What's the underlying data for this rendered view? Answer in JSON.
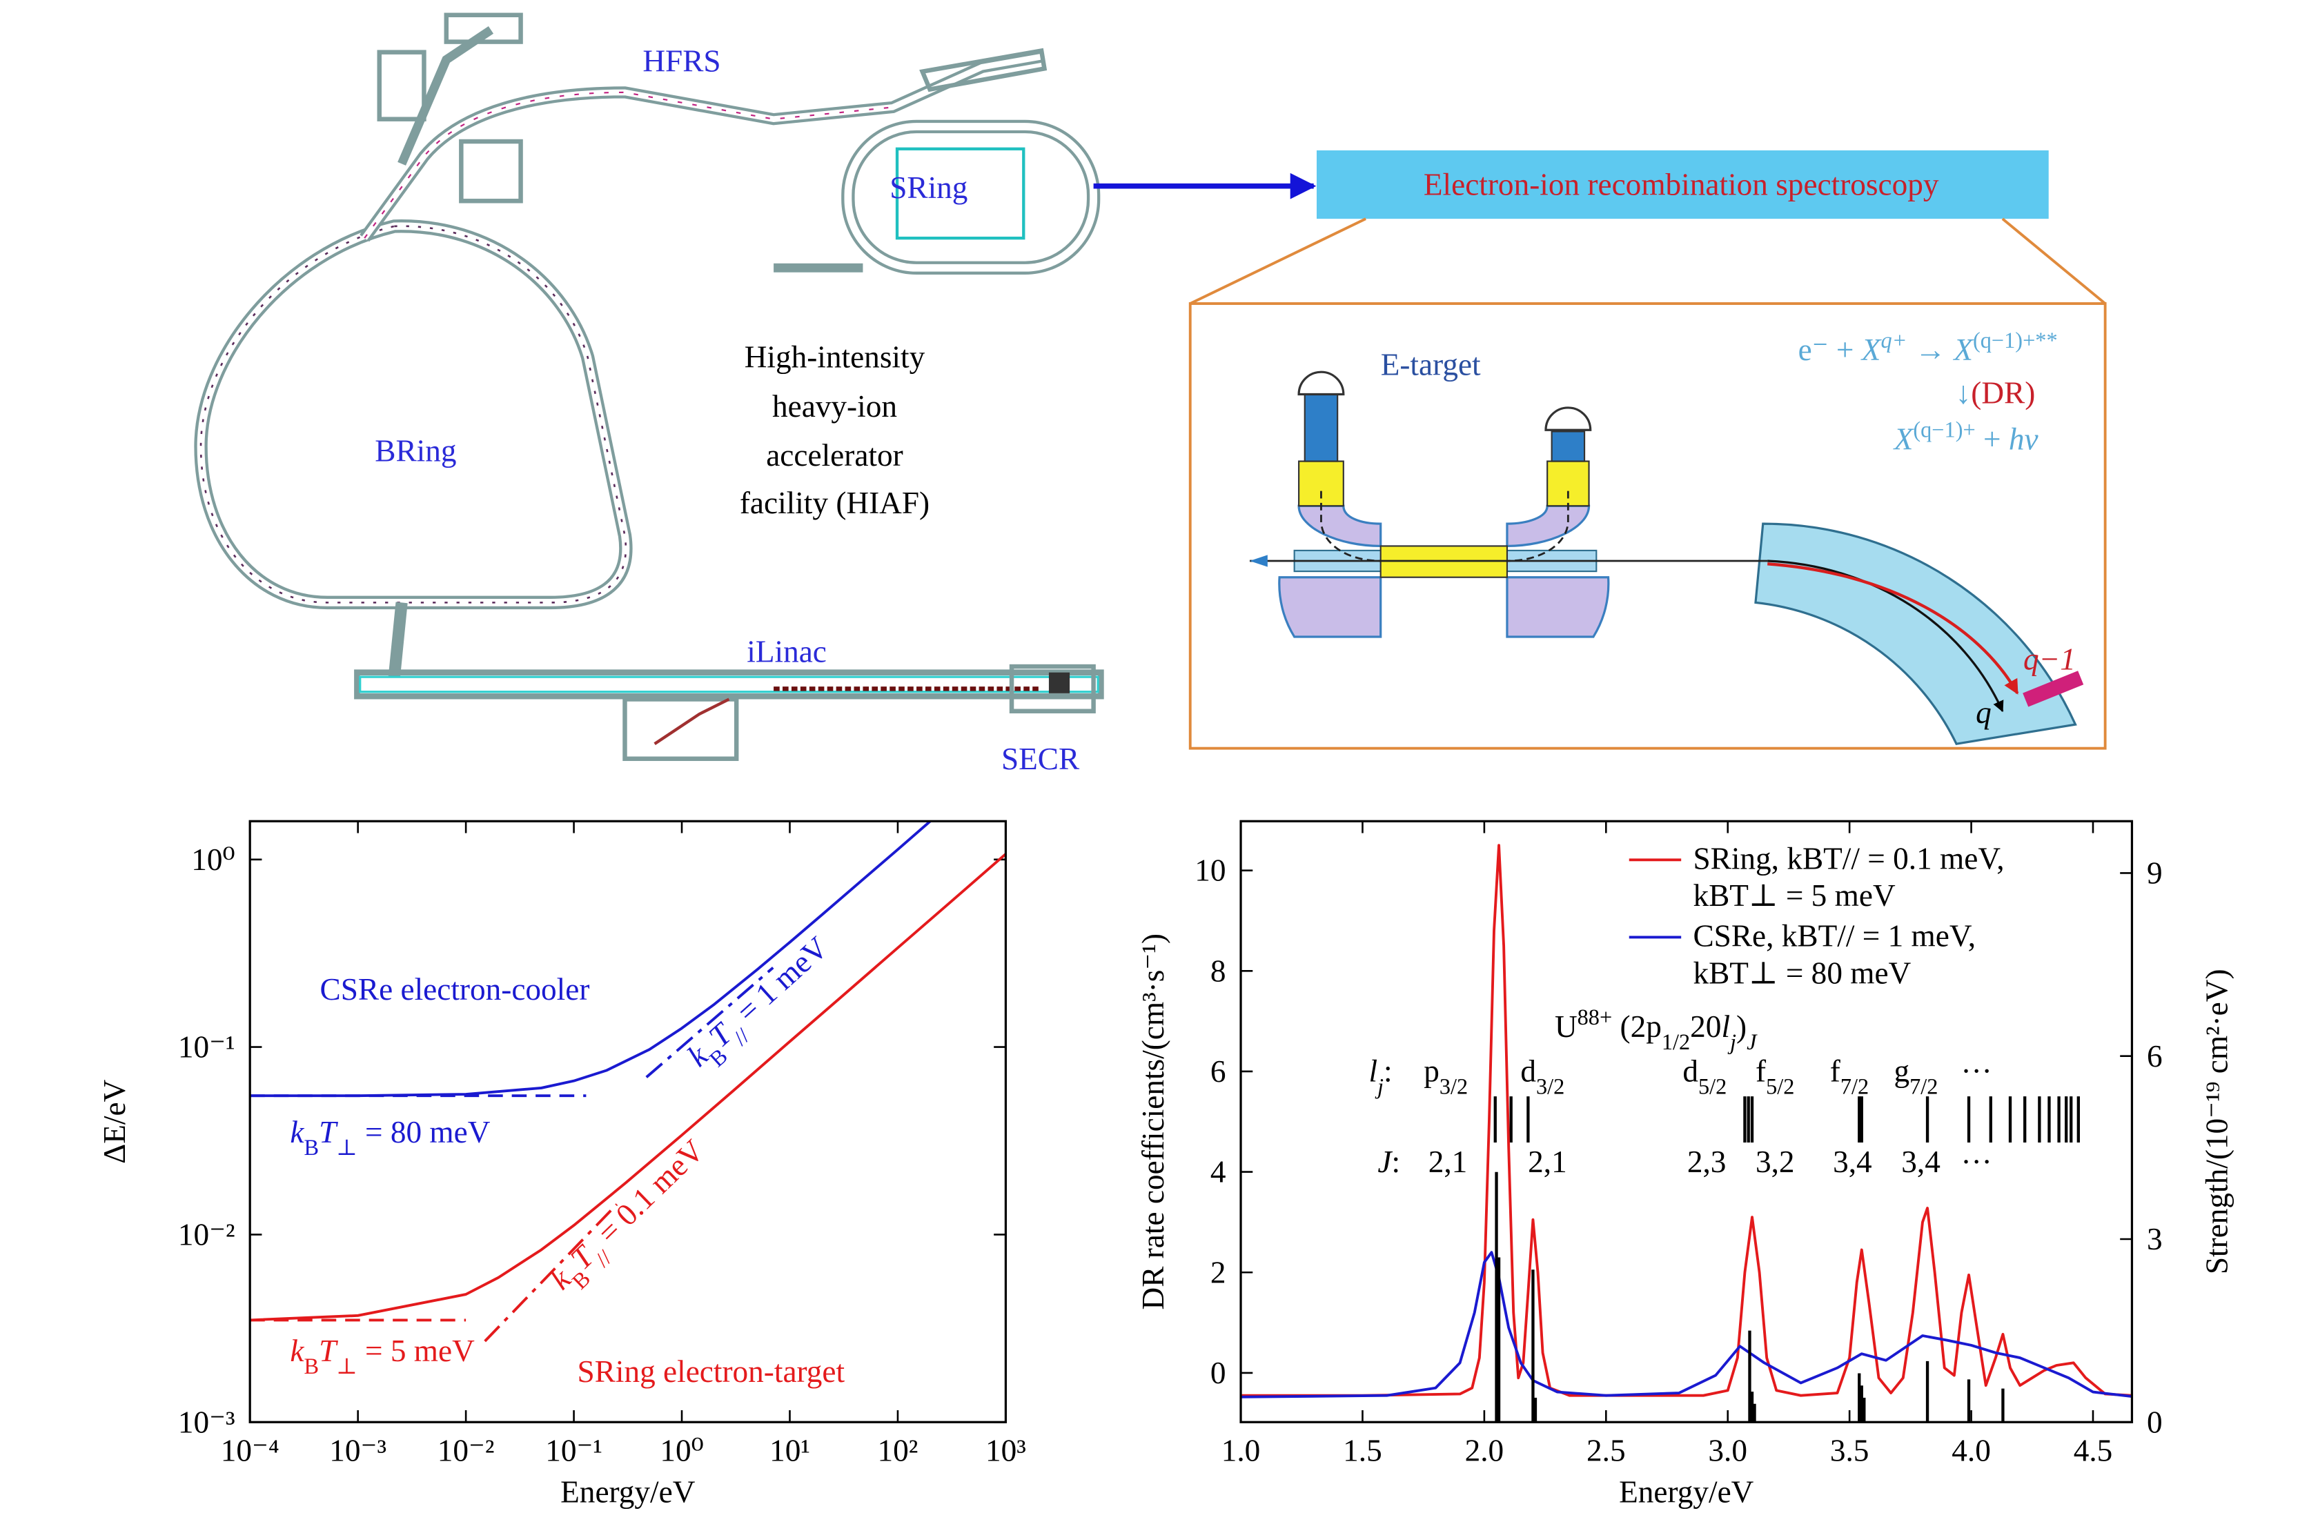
{
  "diagram": {
    "facility_labels": [
      "HFRS",
      "SRing",
      "BRing",
      "iLinac",
      "SECR"
    ],
    "facility_title": [
      "High-intensity",
      "heavy-ion",
      "accelerator",
      "facility (HIAF)"
    ],
    "box_title": "Electron-ion recombination spectroscopy",
    "etarget": "E-target",
    "process": [
      {
        "parts": [
          {
            "text": "e⁻ + "
          },
          {
            "text": "X",
            "i": true
          },
          {
            "text": "q+",
            "sup": true,
            "i": true
          },
          {
            "text": " → "
          },
          {
            "text": "X",
            "i": true
          },
          {
            "text": "(q−1)+**",
            "sup": true
          }
        ],
        "color": "#5aa9d6"
      },
      {
        "parts": [
          {
            "text": "↓"
          },
          {
            "text": "(DR)",
            "color": "#c8202a"
          }
        ],
        "color": "#5aa9d6"
      },
      {
        "parts": [
          {
            "text": "X",
            "i": true
          },
          {
            "text": "(q−1)+",
            "sup": true
          },
          {
            "text": " + "
          },
          {
            "text": "hν",
            "i": true
          }
        ],
        "color": "#5aa9d6"
      }
    ],
    "dipole_labels": [
      "q−1",
      "q"
    ]
  },
  "chart_data": [
    {
      "type": "line",
      "xscale": "log",
      "yscale": "log",
      "xlabel": "Energy/eV",
      "ylabel": "ΔE/eV",
      "xlim": [
        0.0001,
        1000
      ],
      "ylim": [
        0.001,
        1.6
      ],
      "xticks": [
        {
          "value": 0.0001,
          "label": "10⁻⁴"
        },
        {
          "value": 0.001,
          "label": "10⁻³"
        },
        {
          "value": 0.01,
          "label": "10⁻²"
        },
        {
          "value": 0.1,
          "label": "10⁻¹"
        },
        {
          "value": 1,
          "label": "10⁰"
        },
        {
          "value": 10,
          "label": "10¹"
        },
        {
          "value": 100,
          "label": "10²"
        },
        {
          "value": 1000,
          "label": "10³"
        }
      ],
      "yticks": [
        {
          "value": 0.001,
          "label": "10⁻³"
        },
        {
          "value": 0.01,
          "label": "10⁻²"
        },
        {
          "value": 0.1,
          "label": "10⁻¹"
        },
        {
          "value": 1,
          "label": "10⁰"
        }
      ],
      "series": [
        {
          "color": "#1a1ad0",
          "style": "solid",
          "x": [
            0.0001,
            0.001,
            0.01,
            0.05,
            0.1,
            0.2,
            0.5,
            1,
            2,
            5,
            10,
            20,
            50,
            100,
            200
          ],
          "values": [
            0.055,
            0.055,
            0.056,
            0.0605,
            0.066,
            0.075,
            0.097,
            0.126,
            0.169,
            0.259,
            0.362,
            0.509,
            0.802,
            1.13,
            1.6
          ]
        },
        {
          "color": "#1a1ad0",
          "style": "dashed",
          "x": [
            0.0001,
            0.13
          ],
          "values": [
            0.055,
            0.055
          ]
        },
        {
          "color": "#1a1ad0",
          "style": "dashdot",
          "x": [
            0.47,
            7
          ],
          "values": [
            0.069,
            0.265
          ]
        },
        {
          "color": "#e41a1c",
          "style": "solid",
          "x": [
            0.0001,
            0.001,
            0.01,
            0.02,
            0.05,
            0.1,
            0.3,
            1,
            3,
            10,
            30,
            100,
            300,
            1000
          ],
          "values": [
            0.0035,
            0.0037,
            0.0048,
            0.0059,
            0.0083,
            0.0112,
            0.0188,
            0.0339,
            0.0585,
            0.107,
            0.185,
            0.338,
            0.585,
            1.07
          ]
        },
        {
          "color": "#e41a1c",
          "style": "dashed",
          "x": [
            0.0001,
            0.01
          ],
          "values": [
            0.0035,
            0.0035
          ]
        },
        {
          "color": "#e41a1c",
          "style": "dashdot",
          "x": [
            0.015,
            0.25
          ],
          "values": [
            0.0027,
            0.0145
          ]
        }
      ],
      "annotations": [
        {
          "parts": [
            {
              "text": "CSRe electron-cooler"
            }
          ],
          "color": "#1a1ad0"
        },
        {
          "parts": [
            {
              "text": "k",
              "i": true
            },
            {
              "text": "B",
              "sub": true
            },
            {
              "text": "T",
              "i": true
            },
            {
              "text": "⊥",
              "sub": true
            },
            {
              "text": " = 80 meV"
            }
          ],
          "color": "#1a1ad0"
        },
        {
          "parts": [
            {
              "text": "k",
              "i": true
            },
            {
              "text": "B",
              "sub": true
            },
            {
              "text": "T",
              "i": true
            },
            {
              "text": "//",
              "sub": true
            },
            {
              "text": " = 1 meV"
            }
          ],
          "color": "#1a1ad0"
        },
        {
          "parts": [
            {
              "text": "k",
              "i": true
            },
            {
              "text": "B",
              "sub": true
            },
            {
              "text": "T",
              "i": true
            },
            {
              "text": "//",
              "sub": true
            },
            {
              "text": " = 0.1 meV"
            }
          ],
          "color": "#e41a1c"
        },
        {
          "parts": [
            {
              "text": "k",
              "i": true
            },
            {
              "text": "B",
              "sub": true
            },
            {
              "text": "T",
              "i": true
            },
            {
              "text": "⊥",
              "sub": true
            },
            {
              "text": " = 5 meV"
            }
          ],
          "color": "#e41a1c"
        },
        {
          "parts": [
            {
              "text": "SRing electron-target"
            }
          ],
          "color": "#e41a1c"
        }
      ]
    },
    {
      "type": "line",
      "xlabel": "Energy/eV",
      "ylabel": "DR rate coefficients/(cm³·s⁻¹)",
      "y2label": "Strength/(10⁻¹⁹ cm²·eV)",
      "xlim": [
        1.0,
        4.66
      ],
      "ylim": [
        -0.98,
        10.98
      ],
      "y2lim": [
        0,
        9.85
      ],
      "xticks": [
        {
          "value": 1,
          "label": "1.0"
        },
        1.5,
        {
          "value": 2,
          "label": "2.0"
        },
        2.5,
        {
          "value": 3,
          "label": "3.0"
        },
        3.5,
        {
          "value": 4,
          "label": "4.0"
        },
        4.5
      ],
      "yticks": [
        0,
        2,
        4,
        6,
        8,
        10
      ],
      "y2ticks": [
        0,
        3,
        6,
        9
      ],
      "series": [
        {
          "name": "SRing, kBT// = 0.1 meV, kBT⊥ = 5 meV",
          "color": "#e41a1c",
          "x": [
            1.0,
            1.5,
            1.9,
            1.95,
            1.98,
            2.0,
            2.02,
            2.04,
            2.06,
            2.08,
            2.1,
            2.12,
            2.14,
            2.16,
            2.18,
            2.2,
            2.22,
            2.24,
            2.27,
            2.35,
            2.9,
            3.0,
            3.04,
            3.07,
            3.1,
            3.13,
            3.16,
            3.2,
            3.3,
            3.45,
            3.5,
            3.53,
            3.55,
            3.58,
            3.62,
            3.67,
            3.72,
            3.76,
            3.8,
            3.82,
            3.85,
            3.89,
            3.93,
            3.96,
            3.99,
            4.02,
            4.06,
            4.1,
            4.13,
            4.16,
            4.2,
            4.25,
            4.3,
            4.35,
            4.42,
            4.47,
            4.55,
            4.66
          ],
          "values": [
            -0.45,
            -0.45,
            -0.42,
            -0.3,
            0.3,
            1.8,
            5.0,
            8.8,
            10.5,
            8.5,
            4.5,
            1.2,
            -0.1,
            0.2,
            1.6,
            3.05,
            2.0,
            0.4,
            -0.3,
            -0.45,
            -0.45,
            -0.35,
            0.3,
            2.0,
            3.1,
            2.0,
            0.3,
            -0.35,
            -0.45,
            -0.4,
            0.3,
            1.8,
            2.45,
            1.4,
            -0.1,
            -0.4,
            -0.1,
            1.2,
            3.0,
            3.28,
            2.0,
            0.1,
            -0.05,
            1.2,
            1.95,
            1.0,
            -0.25,
            0.3,
            0.77,
            0.1,
            -0.25,
            -0.1,
            0.05,
            0.15,
            0.2,
            -0.1,
            -0.42,
            -0.45
          ]
        },
        {
          "name": "CSRe, kBT// = 1 meV, kBT⊥ = 80 meV",
          "color": "#1a1ad0",
          "x": [
            1.0,
            1.6,
            1.8,
            1.9,
            1.96,
            2.0,
            2.03,
            2.06,
            2.1,
            2.15,
            2.2,
            2.3,
            2.5,
            2.8,
            2.95,
            3.05,
            3.15,
            3.3,
            3.45,
            3.55,
            3.65,
            3.8,
            3.9,
            4.0,
            4.1,
            4.2,
            4.3,
            4.4,
            4.5,
            4.66
          ],
          "values": [
            -0.48,
            -0.45,
            -0.3,
            0.2,
            1.2,
            2.2,
            2.4,
            1.9,
            0.9,
            0.2,
            -0.15,
            -0.38,
            -0.45,
            -0.4,
            -0.05,
            0.53,
            0.2,
            -0.2,
            0.1,
            0.38,
            0.25,
            0.74,
            0.65,
            0.55,
            0.4,
            0.3,
            0.1,
            -0.1,
            -0.38,
            -0.47
          ]
        },
        {
          "kind": "stick",
          "axis": "y2",
          "color": "#000000",
          "x": [
            2.05,
            2.06,
            2.2,
            2.21,
            3.09,
            3.1,
            3.11,
            3.54,
            3.55,
            3.56,
            3.82,
            3.99,
            4.13
          ],
          "values": [
            4.1,
            2.7,
            2.5,
            0.4,
            1.5,
            0.5,
            0.3,
            0.8,
            0.6,
            0.4,
            1.0,
            0.7,
            0.55
          ]
        }
      ],
      "levels": [
        2.045,
        2.11,
        2.18,
        3.07,
        3.085,
        3.1,
        3.54,
        3.55,
        3.82,
        3.99,
        4.08,
        4.16,
        4.22,
        4.28,
        4.32,
        4.36,
        4.39,
        4.41,
        4.44
      ],
      "annotations": [
        {
          "parts": [
            {
              "text": "U"
            },
            {
              "text": "88+",
              "sup": true
            },
            {
              "text": " (2p"
            },
            {
              "text": "1/2",
              "sub": true
            },
            {
              "text": "20"
            },
            {
              "text": "l",
              "i": true
            },
            {
              "text": "j",
              "sub": true,
              "i": true
            },
            {
              "text": ")"
            },
            {
              "text": "J",
              "sub": true,
              "i": true
            }
          ]
        },
        {
          "parts": [
            {
              "text": "l",
              "i": true
            },
            {
              "text": "j",
              "sub": true,
              "i": true
            },
            {
              "text": ":"
            }
          ]
        },
        {
          "parts": [
            {
              "text": "p"
            },
            {
              "text": "3/2",
              "sub": true
            }
          ]
        },
        {
          "parts": [
            {
              "text": "d"
            },
            {
              "text": "3/2",
              "sub": true
            }
          ]
        },
        {
          "parts": [
            {
              "text": "d"
            },
            {
              "text": "5/2",
              "sub": true
            }
          ]
        },
        {
          "parts": [
            {
              "text": "f"
            },
            {
              "text": "5/2",
              "sub": true
            }
          ]
        },
        {
          "parts": [
            {
              "text": "f"
            },
            {
              "text": "7/2",
              "sub": true
            }
          ]
        },
        {
          "parts": [
            {
              "text": "g"
            },
            {
              "text": "7/2",
              "sub": true
            }
          ]
        },
        {
          "parts": [
            {
              "text": "···"
            }
          ]
        },
        {
          "parts": [
            {
              "text": "J",
              "i": true
            },
            {
              "text": ":"
            }
          ]
        },
        {
          "parts": [
            {
              "text": "2,1"
            }
          ]
        },
        {
          "parts": [
            {
              "text": "2,1"
            }
          ]
        },
        {
          "parts": [
            {
              "text": "2,3"
            }
          ]
        },
        {
          "parts": [
            {
              "text": "3,2"
            }
          ]
        },
        {
          "parts": [
            {
              "text": "3,4"
            }
          ]
        },
        {
          "parts": [
            {
              "text": "3,4"
            }
          ]
        },
        {
          "parts": [
            {
              "text": "···"
            }
          ]
        }
      ]
    }
  ]
}
